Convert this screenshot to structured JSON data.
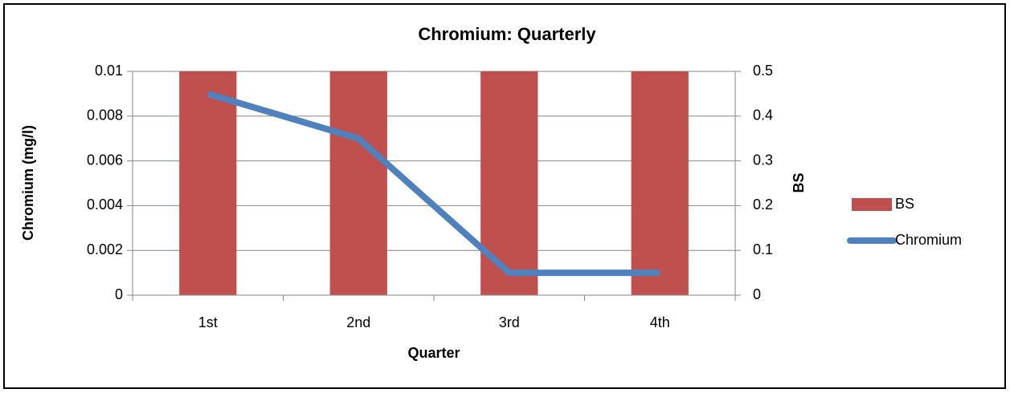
{
  "chart_data": {
    "type": "bar",
    "title": "Chromium: Quarterly",
    "x_label": "Quarter",
    "y_label": "Chromium (mg/l)",
    "y2_label": "BS",
    "categories": [
      "1st",
      "2nd",
      "3rd",
      "4th"
    ],
    "series": [
      {
        "name": "BS",
        "type": "bar",
        "axis": "y2",
        "color": "#c0504d",
        "values": [
          0.5,
          0.5,
          0.5,
          0.5
        ]
      },
      {
        "name": "Chromium",
        "type": "line",
        "color": "#4f81bd",
        "values": [
          0.009,
          0.007,
          0.001,
          0.001
        ]
      }
    ],
    "ylim": [
      0,
      0.01
    ],
    "yticks": [
      0,
      0.002,
      0.004,
      0.006,
      0.008,
      0.01
    ],
    "y2lim": [
      0,
      0.5
    ],
    "y2ticks": [
      0,
      0.1,
      0.2,
      0.3,
      0.4,
      0.5
    ],
    "grid": true,
    "legend": "right"
  }
}
